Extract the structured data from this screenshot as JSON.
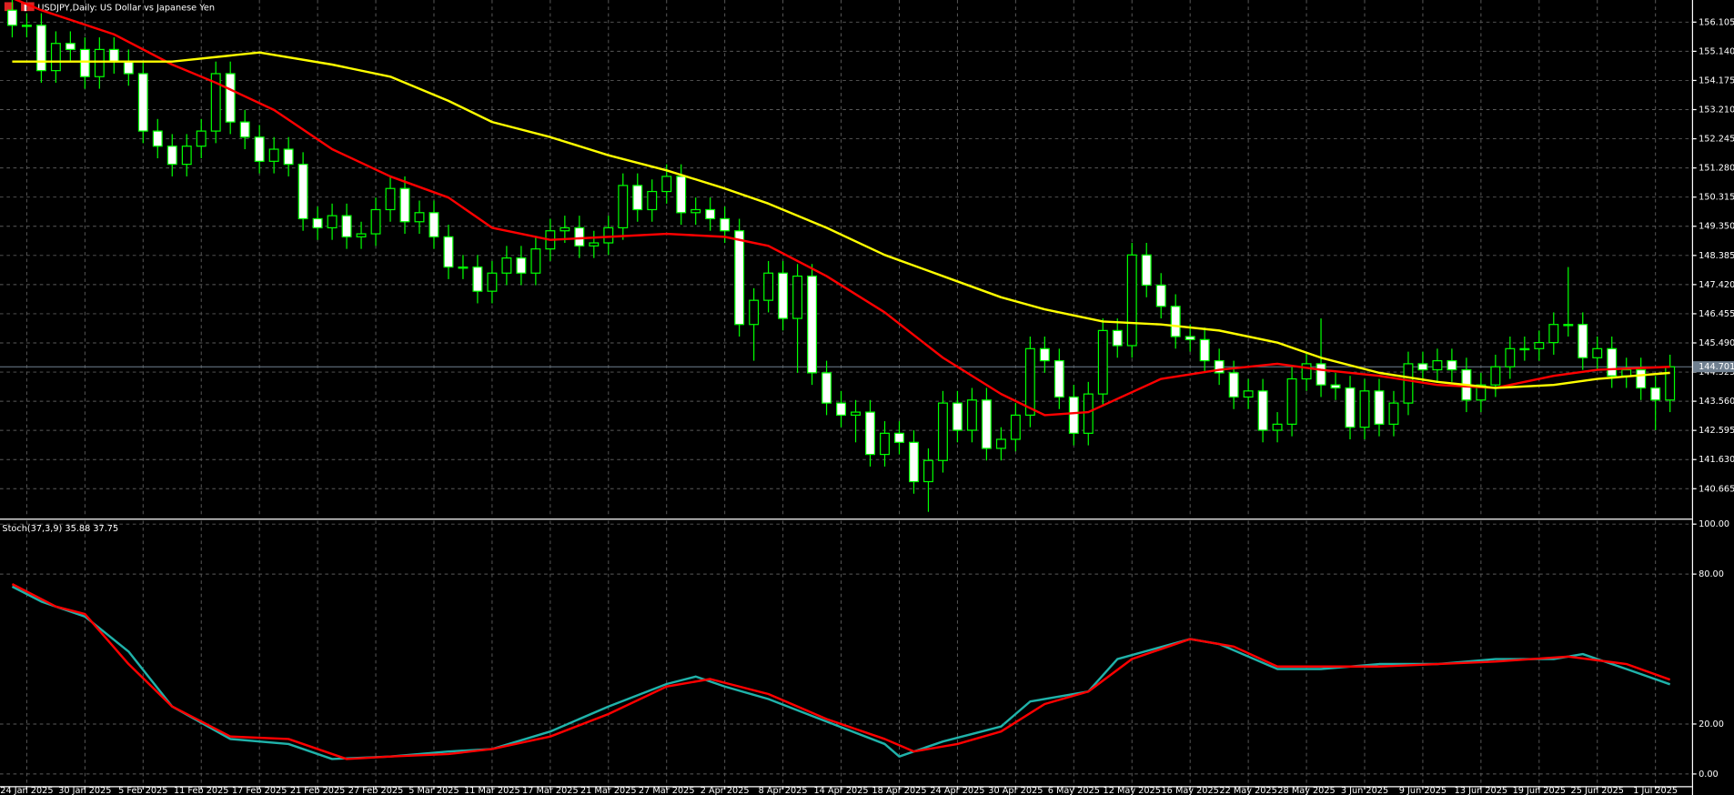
{
  "chart_data": [
    {
      "type": "candlestick",
      "title": "USDJPY,Daily:  US Dollar vs Japanese Yen",
      "xlim": [
        -0.84,
        115.51
      ],
      "xticks": [
        {
          "value": 1,
          "label": "24 Jan 2025"
        },
        {
          "value": 5,
          "label": "30 Jan 2025"
        },
        {
          "value": 9,
          "label": "5 Feb 2025"
        },
        {
          "value": 13,
          "label": "11 Feb 2025"
        },
        {
          "value": 17,
          "label": "17 Feb 2025"
        },
        {
          "value": 21,
          "label": "21 Feb 2025"
        },
        {
          "value": 25,
          "label": "27 Feb 2025"
        },
        {
          "value": 29,
          "label": "5 Mar 2025"
        },
        {
          "value": 33,
          "label": "11 Mar 2025"
        },
        {
          "value": 37,
          "label": "17 Mar 2025"
        },
        {
          "value": 41,
          "label": "21 Mar 2025"
        },
        {
          "value": 45,
          "label": "27 Mar 2025"
        },
        {
          "value": 49,
          "label": "2 Apr 2025"
        },
        {
          "value": 53,
          "label": "8 Apr 2025"
        },
        {
          "value": 57,
          "label": "14 Apr 2025"
        },
        {
          "value": 61,
          "label": "18 Apr 2025"
        },
        {
          "value": 65,
          "label": "24 Apr 2025"
        },
        {
          "value": 69,
          "label": "30 Apr 2025"
        },
        {
          "value": 73,
          "label": "6 May 2025"
        },
        {
          "value": 77,
          "label": "12 May 2025"
        },
        {
          "value": 81,
          "label": "16 May 2025"
        },
        {
          "value": 85,
          "label": "22 May 2025"
        },
        {
          "value": 89,
          "label": "28 May 2025"
        },
        {
          "value": 93,
          "label": "3 Jun 2025"
        },
        {
          "value": 97,
          "label": "9 Jun 2025"
        },
        {
          "value": 101,
          "label": "13 Jun 2025"
        },
        {
          "value": 105,
          "label": "19 Jun 2025"
        },
        {
          "value": 109,
          "label": "25 Jun 2025"
        },
        {
          "value": 113,
          "label": "1 Jul 2025"
        }
      ],
      "ylim": [
        139.714,
        156.837
      ],
      "yticks": [
        156.105,
        {
          "value": 155.14,
          "label": "155.140"
        },
        154.175,
        {
          "value": 153.21,
          "label": "153.210"
        },
        152.245,
        {
          "value": 151.28,
          "label": "151.280"
        },
        150.315,
        {
          "value": 149.35,
          "label": "149.350"
        },
        148.385,
        {
          "value": 147.42,
          "label": "147.420"
        },
        146.455,
        {
          "value": 145.49,
          "label": "145.490"
        },
        144.525,
        {
          "value": 143.56,
          "label": "143.560"
        },
        142.595,
        {
          "value": 141.63,
          "label": "141.630"
        },
        140.665
      ],
      "grid": true,
      "bid": 144.701,
      "bid_color": "#708090",
      "bull_color": "#000000",
      "bear_color": "#ffffff",
      "wick_color": "#00ff00",
      "open": [
        156.5,
        156.0,
        156.0,
        154.5,
        155.4,
        155.2,
        154.3,
        155.2,
        154.8,
        154.4,
        152.5,
        152.0,
        151.4,
        152.0,
        152.5,
        154.4,
        152.8,
        152.3,
        151.5,
        151.9,
        151.4,
        149.6,
        149.3,
        149.7,
        149.0,
        149.1,
        149.9,
        150.6,
        149.5,
        149.8,
        149.0,
        148.0,
        148.0,
        147.2,
        147.8,
        148.3,
        147.8,
        148.6,
        149.2,
        149.3,
        148.7,
        148.8,
        149.3,
        150.7,
        149.9,
        150.5,
        151.0,
        149.8,
        149.9,
        149.6,
        149.2,
        146.1,
        146.9,
        147.8,
        146.3,
        147.7,
        144.5,
        143.5,
        143.1,
        143.2,
        141.8,
        142.5,
        142.2,
        140.9,
        141.6,
        143.5,
        142.6,
        143.6,
        142.0,
        142.3,
        143.1,
        145.3,
        144.9,
        143.7,
        142.5,
        143.8,
        145.9,
        145.4,
        148.4,
        147.4,
        146.7,
        145.7,
        145.6,
        144.9,
        144.5,
        143.7,
        143.9,
        142.6,
        142.8,
        144.3,
        144.8,
        144.1,
        144.0,
        142.7,
        143.9,
        142.8,
        143.5,
        144.8,
        144.6,
        144.9,
        144.6,
        143.6,
        144.1,
        144.7,
        145.3,
        145.3,
        145.5,
        146.1,
        146.1,
        145.0,
        145.3,
        144.4,
        144.6,
        144.0,
        143.6
      ],
      "high": [
        156.9,
        156.4,
        156.4,
        155.8,
        155.8,
        155.6,
        155.6,
        155.6,
        155.2,
        154.8,
        152.9,
        152.4,
        152.4,
        152.9,
        154.8,
        154.8,
        153.2,
        152.7,
        152.3,
        152.3,
        151.8,
        150.0,
        150.1,
        150.1,
        149.5,
        150.3,
        151.0,
        151.0,
        150.2,
        150.2,
        149.4,
        148.4,
        148.4,
        148.2,
        148.7,
        148.7,
        149.0,
        149.6,
        149.7,
        149.7,
        149.2,
        149.7,
        151.1,
        151.1,
        150.9,
        151.4,
        151.4,
        150.3,
        150.3,
        150.0,
        149.6,
        147.3,
        148.2,
        148.2,
        148.1,
        148.1,
        144.9,
        143.9,
        143.6,
        143.6,
        142.9,
        142.9,
        142.6,
        142.0,
        143.9,
        143.9,
        144.0,
        144.0,
        142.7,
        143.5,
        145.7,
        145.7,
        145.3,
        144.1,
        144.2,
        146.3,
        146.3,
        148.8,
        148.8,
        147.8,
        147.1,
        146.1,
        146.0,
        145.3,
        144.9,
        144.3,
        144.3,
        143.2,
        144.7,
        145.2,
        146.3,
        144.5,
        144.4,
        144.3,
        144.3,
        143.9,
        145.2,
        145.2,
        145.3,
        145.3,
        145.0,
        144.5,
        145.1,
        145.7,
        145.7,
        145.9,
        146.5,
        148.0,
        146.5,
        145.7,
        145.7,
        145.0,
        145.0,
        144.4,
        145.1
      ],
      "low": [
        155.6,
        155.6,
        154.1,
        154.1,
        154.8,
        153.9,
        153.9,
        154.4,
        154.0,
        152.1,
        151.6,
        151.0,
        151.0,
        151.6,
        152.1,
        152.4,
        151.9,
        151.1,
        151.1,
        151.0,
        149.2,
        148.9,
        148.9,
        148.6,
        148.6,
        148.7,
        149.5,
        149.1,
        149.1,
        148.6,
        147.6,
        147.6,
        146.8,
        146.8,
        147.4,
        147.4,
        147.4,
        148.2,
        148.8,
        148.3,
        148.3,
        148.4,
        148.9,
        149.5,
        149.5,
        150.1,
        149.4,
        149.4,
        149.2,
        148.8,
        145.7,
        144.9,
        146.5,
        145.9,
        144.5,
        144.1,
        143.1,
        142.7,
        142.2,
        141.4,
        141.4,
        141.8,
        140.5,
        139.9,
        141.2,
        142.2,
        142.2,
        141.6,
        141.6,
        141.9,
        142.7,
        144.5,
        143.3,
        142.1,
        142.1,
        143.4,
        145.0,
        145.0,
        147.0,
        146.3,
        145.3,
        145.2,
        144.5,
        144.1,
        143.3,
        143.3,
        142.2,
        142.2,
        142.4,
        143.9,
        143.7,
        143.6,
        142.3,
        142.3,
        142.4,
        142.4,
        143.1,
        144.2,
        144.2,
        144.2,
        143.2,
        143.2,
        143.7,
        144.3,
        144.9,
        144.9,
        145.1,
        145.7,
        144.6,
        144.6,
        144.0,
        144.0,
        143.6,
        142.6,
        143.2
      ],
      "close": [
        156.0,
        156.0,
        154.5,
        155.4,
        155.2,
        154.3,
        155.2,
        154.8,
        154.4,
        152.5,
        152.0,
        151.4,
        152.0,
        152.5,
        154.4,
        152.8,
        152.3,
        151.5,
        151.9,
        151.4,
        149.6,
        149.3,
        149.7,
        149.0,
        149.1,
        149.9,
        150.6,
        149.5,
        149.8,
        149.0,
        148.0,
        148.0,
        147.2,
        147.8,
        148.3,
        147.8,
        148.6,
        149.2,
        149.3,
        148.7,
        148.8,
        149.3,
        150.7,
        149.9,
        150.5,
        151.0,
        149.8,
        149.9,
        149.6,
        149.2,
        146.1,
        146.9,
        147.8,
        146.3,
        147.7,
        144.5,
        143.5,
        143.1,
        143.2,
        141.8,
        142.5,
        142.2,
        140.9,
        141.6,
        143.5,
        142.6,
        143.6,
        142.0,
        142.3,
        143.1,
        145.3,
        144.9,
        143.7,
        142.5,
        143.8,
        145.9,
        145.4,
        148.4,
        147.4,
        146.7,
        145.7,
        145.6,
        144.9,
        144.5,
        143.7,
        143.9,
        142.6,
        142.8,
        144.3,
        144.8,
        144.1,
        144.0,
        142.7,
        143.9,
        142.8,
        143.5,
        144.8,
        144.6,
        144.9,
        144.6,
        143.6,
        144.1,
        144.7,
        145.3,
        145.3,
        145.5,
        146.1,
        146.1,
        145.0,
        145.3,
        144.4,
        144.6,
        144.0,
        143.6,
        144.7
      ],
      "series": [
        {
          "color": "#ff0000",
          "x": [
            0,
            2,
            7,
            11,
            14,
            18,
            22,
            26,
            30,
            33,
            37,
            41,
            45,
            49,
            52,
            56,
            60,
            64,
            68,
            71,
            74,
            79,
            83,
            87,
            90,
            94,
            98,
            102,
            106,
            109,
            114
          ],
          "values": [
            156.9,
            156.5,
            155.7,
            154.7,
            154.1,
            153.2,
            151.9,
            151.0,
            150.3,
            149.3,
            148.9,
            149.0,
            149.1,
            149.0,
            148.7,
            147.7,
            146.5,
            145.0,
            143.8,
            143.1,
            143.2,
            144.3,
            144.6,
            144.8,
            144.6,
            144.4,
            144.1,
            144.0,
            144.4,
            144.6,
            144.7
          ]
        },
        {
          "color": "#ffff00",
          "x": [
            0,
            7,
            11,
            17,
            22,
            26,
            30,
            33,
            37,
            41,
            45,
            49,
            52,
            56,
            60,
            64,
            68,
            71,
            75,
            79,
            83,
            87,
            90,
            94,
            98,
            102,
            106,
            109,
            114
          ],
          "values": [
            154.8,
            154.8,
            154.8,
            155.1,
            154.7,
            154.3,
            153.5,
            152.8,
            152.3,
            151.7,
            151.2,
            150.6,
            150.1,
            149.3,
            148.4,
            147.7,
            147.0,
            146.6,
            146.2,
            146.1,
            145.9,
            145.5,
            145.0,
            144.5,
            144.2,
            144.0,
            144.1,
            144.3,
            144.5
          ]
        }
      ]
    },
    {
      "type": "line",
      "title": "Stoch(37,3,9) 35.88 37.75",
      "ylim": [
        -4.87,
        101.33
      ],
      "yticks": [
        {
          "value": 100,
          "label": "100.00"
        },
        {
          "value": 80,
          "label": "80.00"
        },
        {
          "value": 20,
          "label": "20.00"
        },
        {
          "value": 0,
          "label": "0.00"
        }
      ],
      "series": [
        {
          "color": "#20b2aa",
          "x": [
            0,
            2,
            5,
            8,
            11,
            15,
            19,
            22,
            26,
            30,
            33,
            37,
            41,
            45,
            47,
            49,
            52,
            56,
            60,
            61,
            64,
            68,
            70,
            74,
            76,
            81,
            83,
            87,
            90,
            94,
            98,
            102,
            106,
            108,
            111,
            114
          ],
          "values": [
            75,
            69,
            63,
            49,
            27,
            14,
            12,
            6,
            7,
            9,
            10,
            17,
            27,
            36,
            39,
            35,
            30,
            21,
            12,
            7,
            13,
            19,
            29,
            33,
            46,
            54,
            52,
            42,
            42,
            44,
            44,
            46,
            46,
            48,
            42,
            35.88
          ]
        },
        {
          "color": "#ff0000",
          "x": [
            0,
            3,
            5,
            8,
            11,
            15,
            19,
            23,
            26,
            30,
            33,
            37,
            41,
            45,
            48,
            52,
            56,
            60,
            62,
            65,
            68,
            71,
            74,
            77,
            81,
            84,
            87,
            94,
            102,
            107,
            111,
            114
          ],
          "values": [
            76,
            67,
            64,
            44,
            27,
            15,
            14,
            6,
            7,
            8,
            10,
            15,
            24,
            35,
            38,
            32,
            22,
            14,
            9,
            12,
            17,
            28,
            33,
            46,
            54,
            51,
            43,
            43,
            45,
            47,
            44,
            37.75
          ]
        }
      ]
    }
  ]
}
